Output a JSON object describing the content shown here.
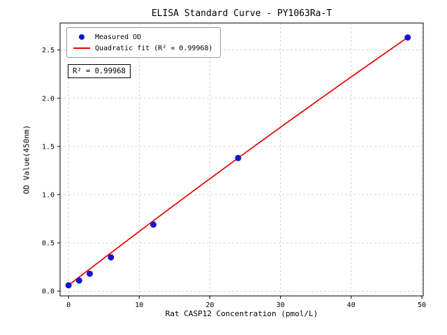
{
  "title": "ELISA Standard Curve - PY1063Ra-T",
  "annotation": "R² = 0.99968",
  "legend": {
    "items": [
      {
        "label": "Measured OD",
        "type": "point",
        "color": "#1515cd"
      },
      {
        "label": "Quadratic fit (R² = 0.99968)",
        "type": "line",
        "color": "#ee0000"
      }
    ]
  },
  "chart_data": {
    "type": "scatter",
    "title": "ELISA Standard Curve - PY1063Ra-T",
    "xlabel": "Rat CASP12 Concentration (pmol/L)",
    "ylabel": "OD Value(450nm)",
    "xlim": [
      -1.2,
      50.2
    ],
    "ylim": [
      -0.05,
      2.78
    ],
    "xticks": [
      0,
      10,
      20,
      30,
      40,
      50
    ],
    "yticks": [
      0.0,
      0.5,
      1.0,
      1.5,
      2.0,
      2.5
    ],
    "grid": true,
    "legend_position": "upper left",
    "points": {
      "x": [
        0,
        1.5,
        3,
        6,
        12,
        24,
        48
      ],
      "y": [
        0.06,
        0.11,
        0.18,
        0.35,
        0.69,
        1.38,
        2.63
      ]
    },
    "fit": {
      "kind": "quadratic",
      "a": -6.08e-05,
      "b": 0.05646,
      "c": 0.06,
      "r2": 0.99968,
      "x_range": [
        0,
        48
      ]
    }
  }
}
